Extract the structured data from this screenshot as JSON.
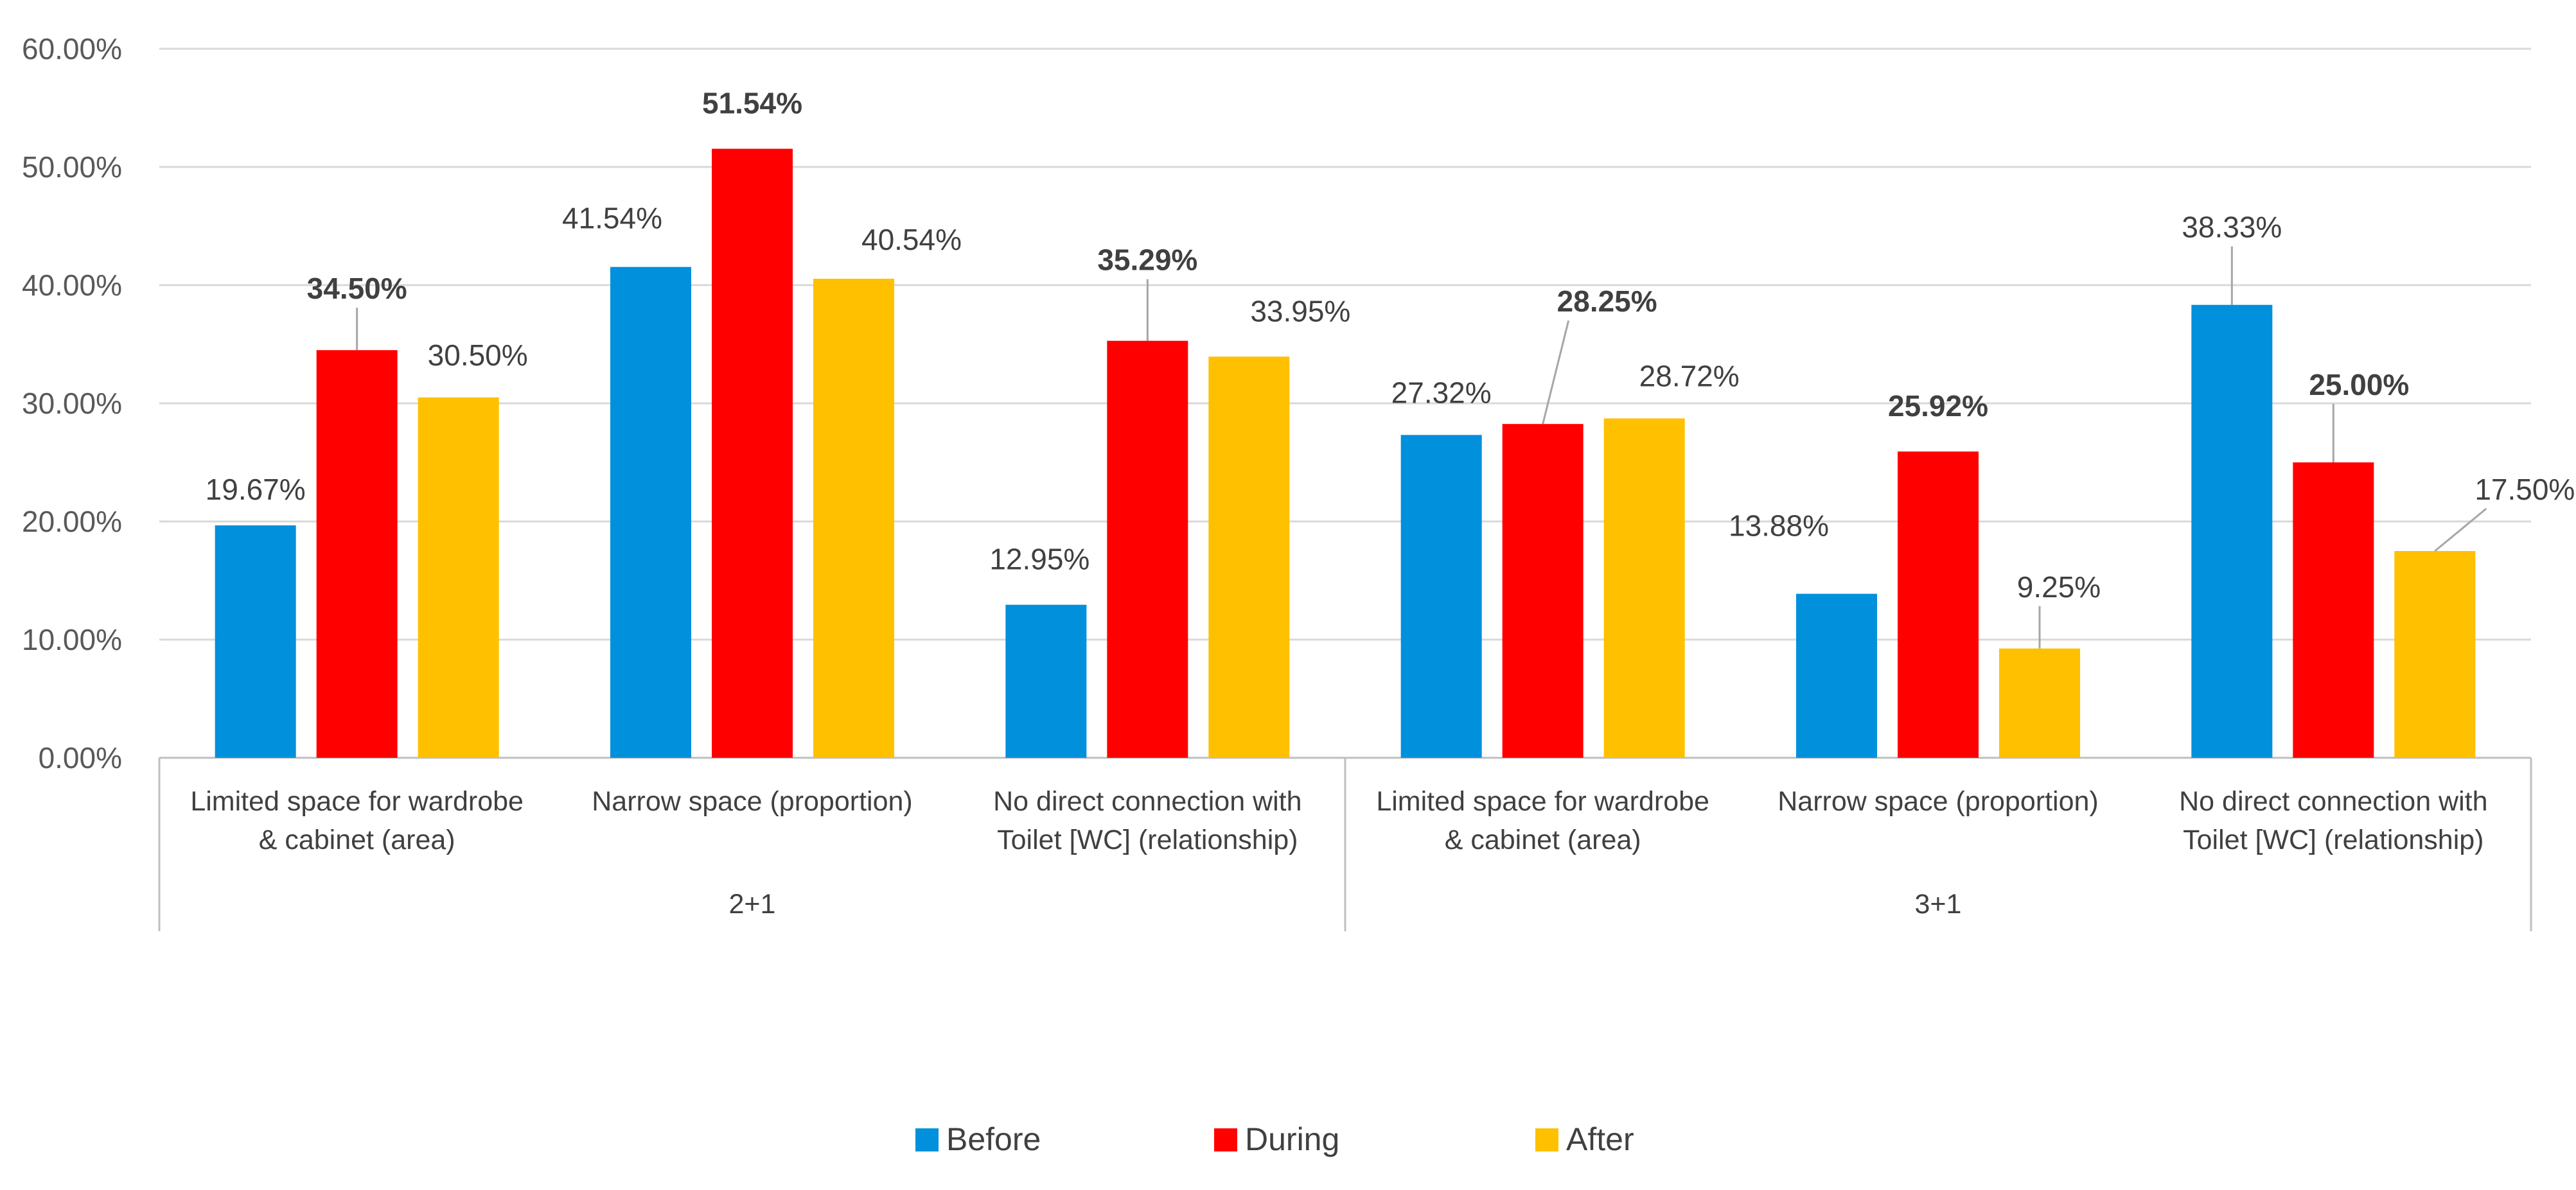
{
  "chart_data": {
    "type": "bar",
    "y_ticks": [
      "0.00%",
      "10.00%",
      "20.00%",
      "30.00%",
      "40.00%",
      "50.00%",
      "60.00%"
    ],
    "ylim": [
      0,
      60
    ],
    "grid": true,
    "legend_position": "bottom",
    "colors": {
      "Before": "#0090dc",
      "During": "#ff0000",
      "After": "#ffc000"
    },
    "groups": [
      {
        "label": "2+1",
        "categories": [
          {
            "line1": "Limited space for wardrobe",
            "line2": "& cabinet (area)",
            "values": [
              19.67,
              34.5,
              30.5
            ],
            "labels": [
              "19.67%",
              "34.50%",
              "30.50%"
            ]
          },
          {
            "line1": "Narrow space (proportion)",
            "line2": "",
            "values": [
              41.54,
              51.54,
              40.54
            ],
            "labels": [
              "41.54%",
              "51.54%",
              "40.54%"
            ]
          },
          {
            "line1": "No direct connection with",
            "line2": "Toilet [WC] (relationship)",
            "values": [
              12.95,
              35.29,
              33.95
            ],
            "labels": [
              "12.95%",
              "35.29%",
              "33.95%"
            ]
          }
        ]
      },
      {
        "label": "3+1",
        "categories": [
          {
            "line1": "Limited space for wardrobe",
            "line2": "& cabinet (area)",
            "values": [
              27.32,
              28.25,
              28.72
            ],
            "labels": [
              "27.32%",
              "28.25%",
              "28.72%"
            ]
          },
          {
            "line1": "Narrow space (proportion)",
            "line2": "",
            "values": [
              13.88,
              25.92,
              9.25
            ],
            "labels": [
              "13.88%",
              "25.92%",
              "9.25%"
            ]
          },
          {
            "line1": "No direct connection with",
            "line2": "Toilet [WC] (relationship)",
            "values": [
              38.33,
              25.0,
              17.5
            ],
            "labels": [
              "38.33%",
              "25.00%",
              "17.50%"
            ]
          }
        ]
      }
    ],
    "series": [
      {
        "name": "Before"
      },
      {
        "name": "During"
      },
      {
        "name": "After"
      }
    ]
  }
}
